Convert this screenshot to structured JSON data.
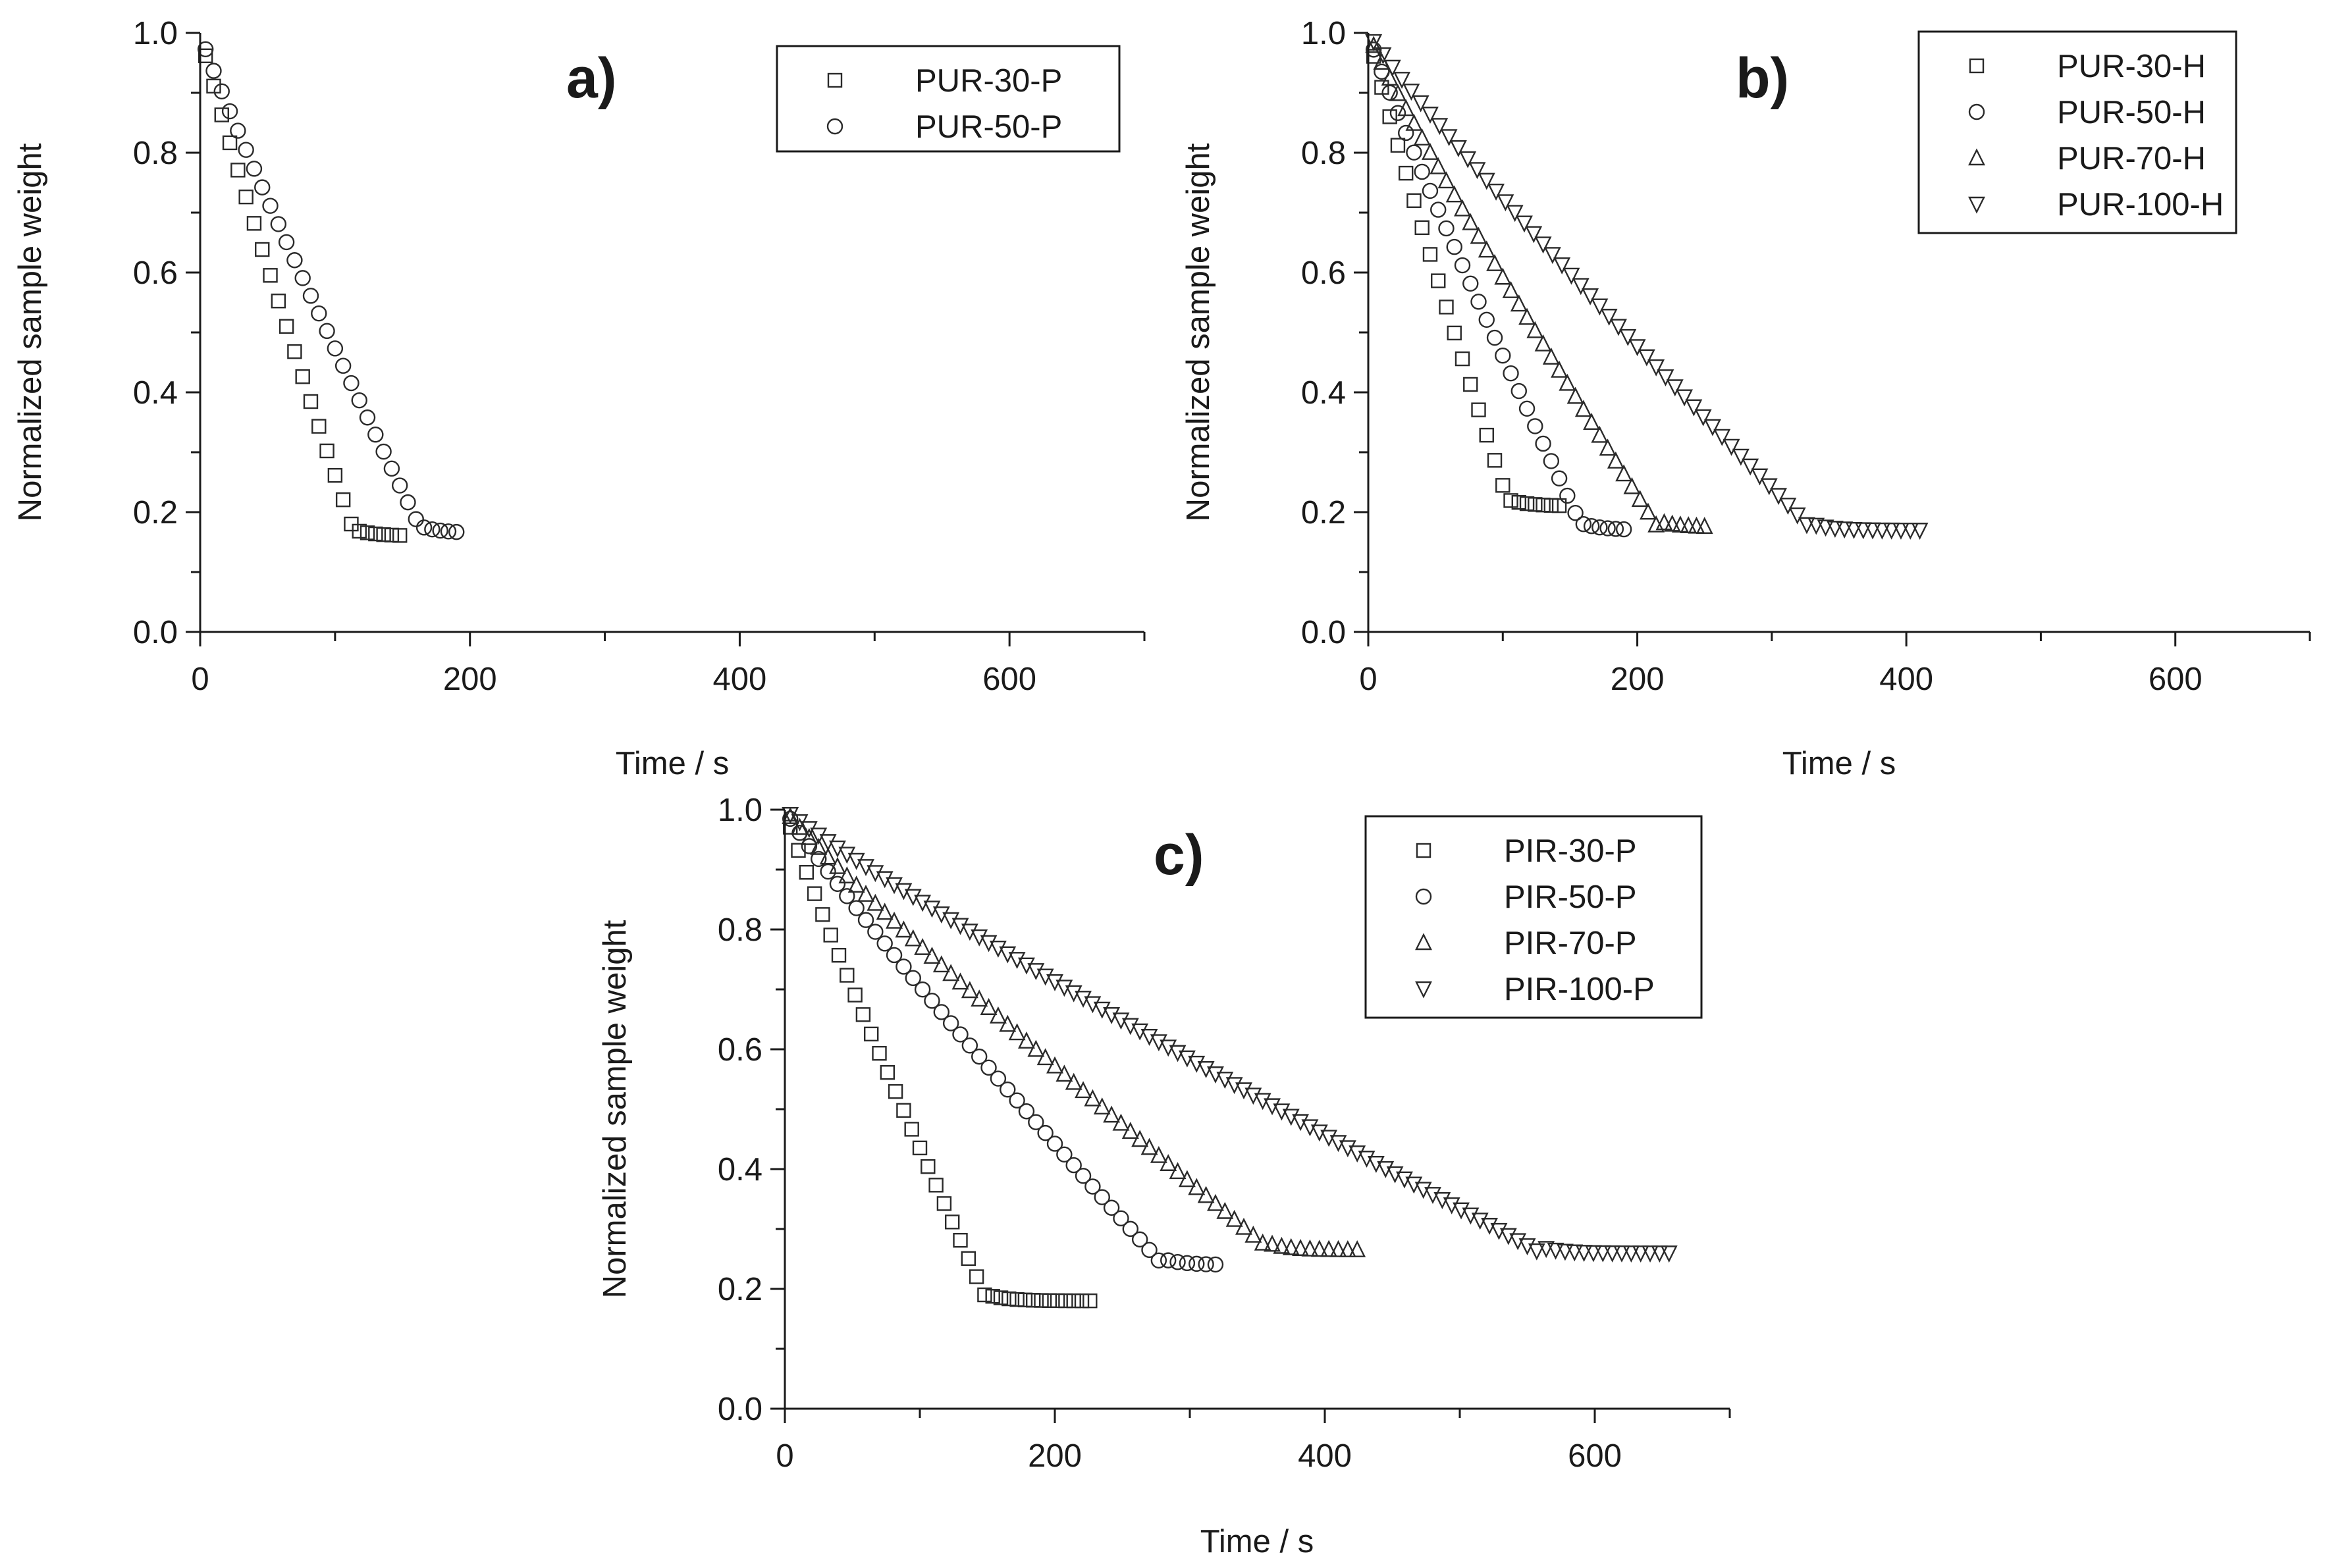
{
  "chart_data": [
    {
      "type": "scatter",
      "panel": "a)",
      "xlabel": "Time / s",
      "ylabel": "Normalized sample weight",
      "xlim": [
        0,
        700
      ],
      "ylim": [
        0,
        1.0
      ],
      "xticks": [
        "0",
        "200",
        "400",
        "600"
      ],
      "yticks": [
        "0.0",
        "0.2",
        "0.4",
        "0.6",
        "0.8",
        "1.0"
      ],
      "legend_position": "top-right",
      "series": [
        {
          "name": "PUR-30-P",
          "marker": "square",
          "end_x": 150,
          "plateau": 0.16,
          "plateau_start": 115
        },
        {
          "name": "PUR-50-P",
          "marker": "circle",
          "end_x": 190,
          "plateau": 0.165,
          "plateau_start": 165
        }
      ]
    },
    {
      "type": "scatter",
      "panel": "b)",
      "xlabel": "Time / s",
      "ylabel": "Normalized sample weight",
      "xlim": [
        0,
        700
      ],
      "ylim": [
        0,
        1.0
      ],
      "xticks": [
        "0",
        "200",
        "400",
        "600"
      ],
      "yticks": [
        "0.0",
        "0.2",
        "0.4",
        "0.6",
        "0.8",
        "1.0"
      ],
      "legend_position": "top-right",
      "series": [
        {
          "name": "PUR-30-H",
          "marker": "square",
          "end_x": 145,
          "plateau": 0.21,
          "plateau_start": 105
        },
        {
          "name": "PUR-50-H",
          "marker": "circle",
          "end_x": 195,
          "plateau": 0.17,
          "plateau_start": 160
        },
        {
          "name": "PUR-70-H",
          "marker": "triangle-up",
          "end_x": 250,
          "plateau": 0.175,
          "plateau_start": 215
        },
        {
          "name": "PUR-100-H",
          "marker": "triangle-down",
          "end_x": 410,
          "plateau": 0.17,
          "plateau_start": 330
        }
      ]
    },
    {
      "type": "scatter",
      "panel": "c)",
      "xlabel": "Time / s",
      "ylabel": "Normalized sample weight",
      "xlim": [
        0,
        700
      ],
      "ylim": [
        0,
        1.0
      ],
      "xticks": [
        "0",
        "200",
        "400",
        "600"
      ],
      "yticks": [
        "0.0",
        "0.2",
        "0.4",
        "0.6",
        "0.8",
        "1.0"
      ],
      "legend_position": "top-right",
      "series": [
        {
          "name": "PIR-30-P",
          "marker": "square",
          "end_x": 230,
          "plateau": 0.18,
          "plateau_start": 150
        },
        {
          "name": "PIR-50-P",
          "marker": "circle",
          "end_x": 320,
          "plateau": 0.24,
          "plateau_start": 280
        },
        {
          "name": "PIR-70-P",
          "marker": "triangle-up",
          "end_x": 430,
          "plateau": 0.265,
          "plateau_start": 360
        },
        {
          "name": "PIR-100-P",
          "marker": "triangle-down",
          "end_x": 655,
          "plateau": 0.26,
          "plateau_start": 560
        }
      ]
    }
  ]
}
